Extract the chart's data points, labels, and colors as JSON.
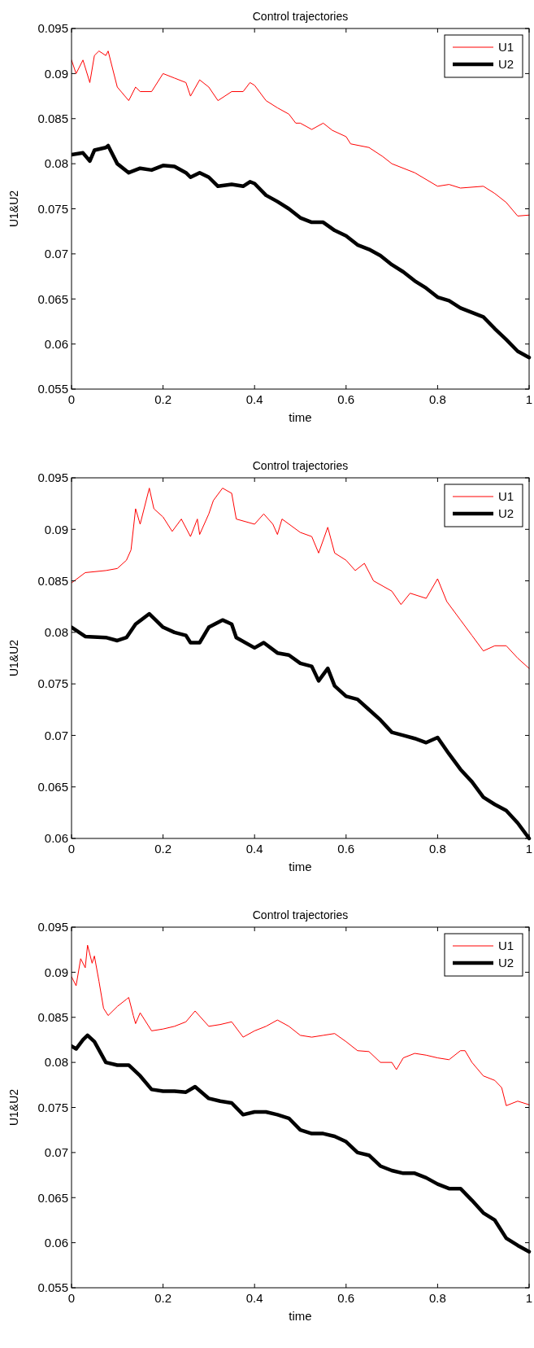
{
  "chart_data": [
    {
      "type": "line",
      "title": "Control trajectories",
      "xlabel": "time",
      "ylabel": "U1&U2",
      "xlim": [
        0,
        1
      ],
      "xticks": [
        0,
        0.2,
        0.4,
        0.6,
        0.8,
        1
      ],
      "ylim": [
        0.055,
        0.095
      ],
      "yticks": [
        0.055,
        0.06,
        0.065,
        0.07,
        0.075,
        0.08,
        0.085,
        0.09,
        0.095
      ],
      "legend": "top right",
      "grid": false,
      "line_style": "solid",
      "series": [
        {
          "name": "U1",
          "color": "#ff0000",
          "x": [
            0,
            0.01,
            0.025,
            0.04,
            0.05,
            0.06,
            0.075,
            0.08,
            0.1,
            0.125,
            0.14,
            0.15,
            0.175,
            0.2,
            0.225,
            0.25,
            0.26,
            0.28,
            0.3,
            0.32,
            0.35,
            0.375,
            0.39,
            0.4,
            0.425,
            0.45,
            0.475,
            0.49,
            0.5,
            0.525,
            0.55,
            0.57,
            0.6,
            0.61,
            0.65,
            0.68,
            0.7,
            0.75,
            0.8,
            0.825,
            0.85,
            0.9,
            0.925,
            0.95,
            0.975,
            1
          ],
          "values": [
            0.0915,
            0.09,
            0.0915,
            0.089,
            0.092,
            0.0925,
            0.092,
            0.0925,
            0.0885,
            0.087,
            0.0885,
            0.088,
            0.088,
            0.09,
            0.0895,
            0.089,
            0.0875,
            0.0893,
            0.0885,
            0.087,
            0.088,
            0.088,
            0.089,
            0.0887,
            0.087,
            0.0862,
            0.0855,
            0.0845,
            0.0845,
            0.0838,
            0.0845,
            0.0837,
            0.083,
            0.0822,
            0.0818,
            0.0808,
            0.08,
            0.079,
            0.0775,
            0.0777,
            0.0773,
            0.0775,
            0.0767,
            0.0757,
            0.0742,
            0.0743
          ]
        },
        {
          "name": "U2",
          "color": "#000000",
          "x": [
            0,
            0.025,
            0.04,
            0.05,
            0.075,
            0.08,
            0.1,
            0.125,
            0.15,
            0.175,
            0.2,
            0.225,
            0.25,
            0.26,
            0.28,
            0.3,
            0.32,
            0.35,
            0.375,
            0.39,
            0.4,
            0.425,
            0.45,
            0.475,
            0.5,
            0.525,
            0.55,
            0.575,
            0.6,
            0.625,
            0.65,
            0.675,
            0.7,
            0.725,
            0.75,
            0.775,
            0.8,
            0.825,
            0.85,
            0.875,
            0.9,
            0.925,
            0.95,
            0.975,
            1
          ],
          "values": [
            0.081,
            0.0812,
            0.0803,
            0.0815,
            0.0818,
            0.082,
            0.08,
            0.079,
            0.0795,
            0.0793,
            0.0798,
            0.0797,
            0.079,
            0.0785,
            0.079,
            0.0785,
            0.0775,
            0.0777,
            0.0775,
            0.078,
            0.0778,
            0.0765,
            0.0758,
            0.075,
            0.074,
            0.0735,
            0.0735,
            0.0726,
            0.072,
            0.071,
            0.0705,
            0.0698,
            0.0688,
            0.068,
            0.067,
            0.0662,
            0.0652,
            0.0648,
            0.064,
            0.0635,
            0.063,
            0.0617,
            0.0605,
            0.0592,
            0.0585
          ]
        }
      ]
    },
    {
      "type": "line",
      "title": "Control trajectories",
      "xlabel": "time",
      "ylabel": "U1&U2",
      "xlim": [
        0,
        1
      ],
      "xticks": [
        0,
        0.2,
        0.4,
        0.6,
        0.8,
        1
      ],
      "ylim": [
        0.06,
        0.095
      ],
      "yticks": [
        0.06,
        0.065,
        0.07,
        0.075,
        0.08,
        0.085,
        0.09,
        0.095
      ],
      "legend": "top right",
      "grid": false,
      "line_style": "solid",
      "series": [
        {
          "name": "U1",
          "color": "#ff0000",
          "x": [
            0,
            0.03,
            0.075,
            0.1,
            0.12,
            0.13,
            0.14,
            0.15,
            0.17,
            0.18,
            0.2,
            0.22,
            0.24,
            0.26,
            0.275,
            0.28,
            0.3,
            0.31,
            0.33,
            0.35,
            0.36,
            0.4,
            0.42,
            0.44,
            0.45,
            0.46,
            0.5,
            0.525,
            0.54,
            0.56,
            0.575,
            0.6,
            0.62,
            0.64,
            0.66,
            0.7,
            0.72,
            0.74,
            0.775,
            0.8,
            0.82,
            0.85,
            0.875,
            0.9,
            0.925,
            0.95,
            0.975,
            1
          ],
          "values": [
            0.0848,
            0.0858,
            0.086,
            0.0862,
            0.087,
            0.088,
            0.092,
            0.0905,
            0.094,
            0.092,
            0.0912,
            0.0898,
            0.091,
            0.0893,
            0.091,
            0.0895,
            0.0915,
            0.0928,
            0.094,
            0.0935,
            0.091,
            0.0905,
            0.0915,
            0.0905,
            0.0895,
            0.091,
            0.0897,
            0.0893,
            0.0877,
            0.0902,
            0.0877,
            0.087,
            0.086,
            0.0867,
            0.085,
            0.084,
            0.0827,
            0.0838,
            0.0833,
            0.0852,
            0.083,
            0.0812,
            0.0797,
            0.0782,
            0.0787,
            0.0787,
            0.0775,
            0.0765
          ]
        },
        {
          "name": "U2",
          "color": "#000000",
          "x": [
            0,
            0.03,
            0.075,
            0.1,
            0.12,
            0.14,
            0.17,
            0.2,
            0.225,
            0.25,
            0.26,
            0.28,
            0.3,
            0.33,
            0.35,
            0.36,
            0.4,
            0.42,
            0.45,
            0.475,
            0.5,
            0.525,
            0.54,
            0.56,
            0.575,
            0.6,
            0.625,
            0.65,
            0.675,
            0.7,
            0.725,
            0.75,
            0.775,
            0.8,
            0.825,
            0.85,
            0.875,
            0.9,
            0.925,
            0.95,
            0.975,
            1
          ],
          "values": [
            0.0805,
            0.0796,
            0.0795,
            0.0792,
            0.0795,
            0.0808,
            0.0818,
            0.0805,
            0.08,
            0.0797,
            0.079,
            0.079,
            0.0805,
            0.0812,
            0.0808,
            0.0795,
            0.0785,
            0.079,
            0.078,
            0.0778,
            0.077,
            0.0767,
            0.0753,
            0.0765,
            0.0748,
            0.0738,
            0.0735,
            0.0725,
            0.0715,
            0.0703,
            0.07,
            0.0697,
            0.0693,
            0.0698,
            0.0682,
            0.0667,
            0.0655,
            0.064,
            0.0633,
            0.0627,
            0.0615,
            0.06
          ]
        }
      ]
    },
    {
      "type": "line",
      "title": "Control trajectories",
      "xlabel": "time",
      "ylabel": "U1&U2",
      "xlim": [
        0,
        1
      ],
      "xticks": [
        0,
        0.2,
        0.4,
        0.6,
        0.8,
        1
      ],
      "ylim": [
        0.055,
        0.095
      ],
      "yticks": [
        0.055,
        0.06,
        0.065,
        0.07,
        0.075,
        0.08,
        0.085,
        0.09,
        0.095
      ],
      "legend": "top right",
      "grid": false,
      "line_style": "solid",
      "series": [
        {
          "name": "U1",
          "color": "#ff0000",
          "x": [
            0,
            0.01,
            0.02,
            0.03,
            0.035,
            0.045,
            0.05,
            0.06,
            0.07,
            0.08,
            0.1,
            0.12,
            0.125,
            0.135,
            0.14,
            0.15,
            0.175,
            0.2,
            0.225,
            0.25,
            0.27,
            0.3,
            0.325,
            0.35,
            0.375,
            0.4,
            0.425,
            0.45,
            0.475,
            0.5,
            0.525,
            0.55,
            0.575,
            0.6,
            0.625,
            0.65,
            0.675,
            0.7,
            0.71,
            0.725,
            0.75,
            0.775,
            0.8,
            0.825,
            0.85,
            0.86,
            0.875,
            0.9,
            0.925,
            0.94,
            0.95,
            0.975,
            1
          ],
          "values": [
            0.0895,
            0.0885,
            0.0915,
            0.0905,
            0.093,
            0.091,
            0.0918,
            0.089,
            0.086,
            0.0852,
            0.0862,
            0.087,
            0.0872,
            0.0852,
            0.0843,
            0.0855,
            0.0835,
            0.0837,
            0.084,
            0.0845,
            0.0857,
            0.084,
            0.0842,
            0.0845,
            0.0828,
            0.0835,
            0.084,
            0.0847,
            0.084,
            0.083,
            0.0828,
            0.083,
            0.0832,
            0.0823,
            0.0813,
            0.0812,
            0.08,
            0.08,
            0.0792,
            0.0805,
            0.081,
            0.0808,
            0.0805,
            0.0803,
            0.0813,
            0.0813,
            0.08,
            0.0785,
            0.078,
            0.0772,
            0.0752,
            0.0757,
            0.0753
          ]
        },
        {
          "name": "U2",
          "color": "#000000",
          "x": [
            0,
            0.01,
            0.025,
            0.035,
            0.05,
            0.075,
            0.1,
            0.125,
            0.15,
            0.175,
            0.2,
            0.225,
            0.25,
            0.27,
            0.3,
            0.325,
            0.35,
            0.375,
            0.4,
            0.425,
            0.45,
            0.475,
            0.5,
            0.525,
            0.55,
            0.575,
            0.6,
            0.625,
            0.65,
            0.675,
            0.7,
            0.725,
            0.75,
            0.775,
            0.8,
            0.825,
            0.85,
            0.875,
            0.9,
            0.925,
            0.95,
            0.975,
            1
          ],
          "values": [
            0.0818,
            0.0815,
            0.0825,
            0.083,
            0.0823,
            0.08,
            0.0797,
            0.0797,
            0.0785,
            0.077,
            0.0768,
            0.0768,
            0.0767,
            0.0773,
            0.076,
            0.0757,
            0.0755,
            0.0742,
            0.0745,
            0.0745,
            0.0742,
            0.0738,
            0.0725,
            0.0721,
            0.0721,
            0.0718,
            0.0712,
            0.07,
            0.0697,
            0.0685,
            0.068,
            0.0677,
            0.0677,
            0.0672,
            0.0665,
            0.066,
            0.066,
            0.0647,
            0.0633,
            0.0625,
            0.0605,
            0.0597,
            0.059
          ]
        }
      ]
    }
  ]
}
